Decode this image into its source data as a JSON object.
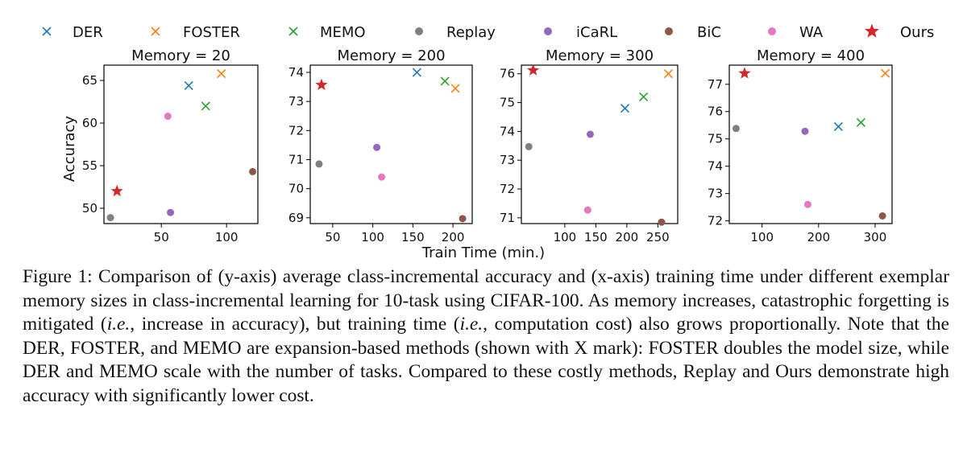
{
  "legend": [
    {
      "name": "DER",
      "marker": "x",
      "color": "#1f77b4"
    },
    {
      "name": "FOSTER",
      "marker": "x",
      "color": "#ff7f0e"
    },
    {
      "name": "MEMO",
      "marker": "x",
      "color": "#2ca02c"
    },
    {
      "name": "Replay",
      "marker": "circle",
      "color": "#7f7f7f"
    },
    {
      "name": "iCaRL",
      "marker": "circle",
      "color": "#9467bd"
    },
    {
      "name": "BiC",
      "marker": "circle",
      "color": "#8c564b"
    },
    {
      "name": "WA",
      "marker": "circle",
      "color": "#e377c2"
    },
    {
      "name": "Ours",
      "marker": "star",
      "color": "#d62728"
    }
  ],
  "shared": {
    "ylabel": "Accuracy",
    "xlabel": "Train Time (min.)"
  },
  "chart_data": [
    {
      "type": "scatter",
      "title": "Memory = 20",
      "xlim": [
        6,
        124
      ],
      "ylim": [
        48.2,
        66.8
      ],
      "xticks": [
        50,
        100
      ],
      "yticks": [
        50,
        55,
        60,
        65
      ],
      "xtick_labels": [
        "50",
        "100"
      ],
      "ytick_labels": [
        "50",
        "55",
        "60",
        "65"
      ],
      "points": [
        {
          "series": "DER",
          "x": 71,
          "y": 64.4
        },
        {
          "series": "FOSTER",
          "x": 96,
          "y": 65.8
        },
        {
          "series": "MEMO",
          "x": 84,
          "y": 62.0
        },
        {
          "series": "Replay",
          "x": 11,
          "y": 48.9
        },
        {
          "series": "iCaRL",
          "x": 57,
          "y": 49.5
        },
        {
          "series": "BiC",
          "x": 120,
          "y": 54.3
        },
        {
          "series": "WA",
          "x": 55,
          "y": 60.8
        },
        {
          "series": "Ours",
          "x": 16,
          "y": 52.0
        }
      ]
    },
    {
      "type": "scatter",
      "title": "Memory = 200",
      "xlim": [
        22,
        224
      ],
      "ylim": [
        68.8,
        74.25
      ],
      "xticks": [
        50,
        100,
        150,
        200
      ],
      "yticks": [
        69,
        70,
        71,
        72,
        73,
        74
      ],
      "xtick_labels": [
        "50",
        "100",
        "150",
        "200"
      ],
      "ytick_labels": [
        "69",
        "70",
        "71",
        "72",
        "73",
        "74"
      ],
      "points": [
        {
          "series": "DER",
          "x": 155,
          "y": 74.0
        },
        {
          "series": "FOSTER",
          "x": 203,
          "y": 73.45
        },
        {
          "series": "MEMO",
          "x": 190,
          "y": 73.7
        },
        {
          "series": "Replay",
          "x": 33,
          "y": 70.85
        },
        {
          "series": "iCaRL",
          "x": 105,
          "y": 71.42
        },
        {
          "series": "BiC",
          "x": 212,
          "y": 68.97
        },
        {
          "series": "WA",
          "x": 111,
          "y": 70.4
        },
        {
          "series": "Ours",
          "x": 36,
          "y": 73.57
        }
      ]
    },
    {
      "type": "scatter",
      "title": "Memory = 300",
      "xlim": [
        30,
        282
      ],
      "ylim": [
        70.8,
        76.3
      ],
      "xticks": [
        100,
        150,
        200,
        250
      ],
      "yticks": [
        71,
        72,
        73,
        74,
        75,
        76
      ],
      "xtick_labels": [
        "100",
        "150",
        "200",
        "250"
      ],
      "ytick_labels": [
        "71",
        "72",
        "73",
        "74",
        "75",
        "76"
      ],
      "points": [
        {
          "series": "DER",
          "x": 197,
          "y": 74.8
        },
        {
          "series": "FOSTER",
          "x": 267,
          "y": 76.0
        },
        {
          "series": "MEMO",
          "x": 227,
          "y": 75.2
        },
        {
          "series": "Replay",
          "x": 42,
          "y": 73.47
        },
        {
          "series": "iCaRL",
          "x": 141,
          "y": 73.9
        },
        {
          "series": "BiC",
          "x": 256,
          "y": 70.85
        },
        {
          "series": "WA",
          "x": 137,
          "y": 71.27
        },
        {
          "series": "Ours",
          "x": 49,
          "y": 76.12
        }
      ]
    },
    {
      "type": "scatter",
      "title": "Memory = 400",
      "xlim": [
        42,
        330
      ],
      "ylim": [
        71.9,
        77.7
      ],
      "xticks": [
        100,
        200,
        300
      ],
      "yticks": [
        72,
        73,
        74,
        75,
        76,
        77
      ],
      "xtick_labels": [
        "100",
        "200",
        "300"
      ],
      "ytick_labels": [
        "72",
        "73",
        "74",
        "75",
        "76",
        "77"
      ],
      "points": [
        {
          "series": "DER",
          "x": 235,
          "y": 75.45
        },
        {
          "series": "FOSTER",
          "x": 318,
          "y": 77.4
        },
        {
          "series": "MEMO",
          "x": 275,
          "y": 75.6
        },
        {
          "series": "Replay",
          "x": 54,
          "y": 75.38
        },
        {
          "series": "iCaRL",
          "x": 176,
          "y": 75.28
        },
        {
          "series": "BiC",
          "x": 313,
          "y": 72.18
        },
        {
          "series": "WA",
          "x": 181,
          "y": 72.6
        },
        {
          "series": "Ours",
          "x": 69,
          "y": 77.4
        }
      ]
    }
  ],
  "caption": {
    "label": "Figure 1:",
    "text1": " Comparison of (y-axis) average class-incremental accuracy and (x-axis) training time under different exemplar memory sizes in class-incremental learning for 10-task using CIFAR-100. As memory increases, catastrophic forgetting is mitigated (",
    "ie1": "i.e.",
    "text2": ", increase in accuracy), but training time (",
    "ie2": "i.e.",
    "text3": ", computation cost) also grows proportionally. Note that the DER, FOSTER, and MEMO are expansion-based methods (shown with X mark): FOSTER doubles the model size, while DER and MEMO scale with the number of tasks. Compared to these costly methods, Replay and Ours demonstrate high accuracy with significantly lower cost."
  }
}
